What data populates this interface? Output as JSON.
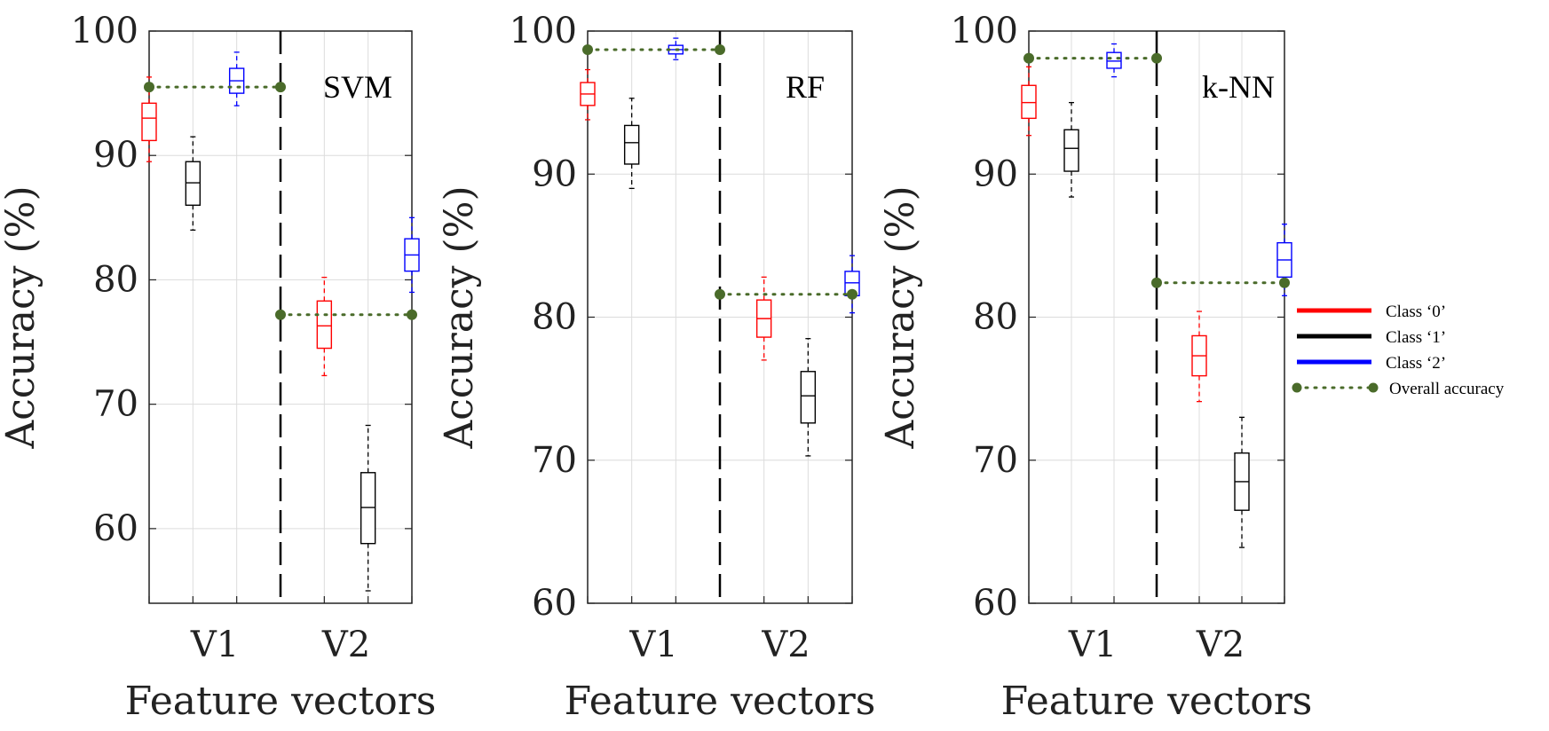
{
  "chart_data": {
    "type": "box",
    "ylabel": "Accuracy (%)",
    "xlabel": "Feature vectors",
    "categories": [
      "V1",
      "V2"
    ],
    "legend": {
      "position": "right",
      "items": [
        {
          "label": "Class ‘0’",
          "color": "#ff0000",
          "style": "solid"
        },
        {
          "label": "Class ‘1’",
          "color": "#000000",
          "style": "solid"
        },
        {
          "label": "Class ‘2’",
          "color": "#0000ff",
          "style": "solid"
        },
        {
          "label": "Overall accuracy",
          "color": "#4a6b2a",
          "style": "dotted-marker"
        }
      ]
    },
    "series_colors": {
      "class0": "#ff0000",
      "class1": "#000000",
      "class2": "#0000ff",
      "overall": "#4a6b2a"
    },
    "panels": [
      {
        "title": "SVM",
        "ylim": [
          54,
          100
        ],
        "yticks": [
          60,
          70,
          80,
          90,
          100
        ],
        "boxes": {
          "V1": [
            {
              "class": "class0",
              "whisker_low": 89.5,
              "q1": 91.2,
              "median": 93.0,
              "q3": 94.2,
              "whisker_high": 96.3
            },
            {
              "class": "class1",
              "whisker_low": 84.0,
              "q1": 86.0,
              "median": 87.8,
              "q3": 89.5,
              "whisker_high": 91.5
            },
            {
              "class": "class2",
              "whisker_low": 94.0,
              "q1": 95.0,
              "median": 96.0,
              "q3": 97.0,
              "whisker_high": 98.3
            }
          ],
          "V2": [
            {
              "class": "class0",
              "whisker_low": 72.3,
              "q1": 74.5,
              "median": 76.3,
              "q3": 78.3,
              "whisker_high": 80.2
            },
            {
              "class": "class1",
              "whisker_low": 55.0,
              "q1": 58.8,
              "median": 61.7,
              "q3": 64.5,
              "whisker_high": 68.3
            },
            {
              "class": "class2",
              "whisker_low": 79.0,
              "q1": 80.7,
              "median": 82.0,
              "q3": 83.3,
              "whisker_high": 85.0
            }
          ]
        },
        "overall": {
          "V1": 95.5,
          "V2": 77.2
        }
      },
      {
        "title": "RF",
        "ylim": [
          60,
          100
        ],
        "yticks": [
          60,
          70,
          80,
          90,
          100
        ],
        "boxes": {
          "V1": [
            {
              "class": "class0",
              "whisker_low": 93.8,
              "q1": 94.8,
              "median": 95.6,
              "q3": 96.4,
              "whisker_high": 97.3
            },
            {
              "class": "class1",
              "whisker_low": 89.0,
              "q1": 90.7,
              "median": 92.2,
              "q3": 93.4,
              "whisker_high": 95.3
            },
            {
              "class": "class2",
              "whisker_low": 98.0,
              "q1": 98.4,
              "median": 98.7,
              "q3": 99.0,
              "whisker_high": 99.5
            }
          ],
          "V2": [
            {
              "class": "class0",
              "whisker_low": 77.0,
              "q1": 78.6,
              "median": 79.9,
              "q3": 81.2,
              "whisker_high": 82.8
            },
            {
              "class": "class1",
              "whisker_low": 70.3,
              "q1": 72.6,
              "median": 74.5,
              "q3": 76.2,
              "whisker_high": 78.5
            },
            {
              "class": "class2",
              "whisker_low": 80.3,
              "q1": 81.5,
              "median": 82.4,
              "q3": 83.2,
              "whisker_high": 84.3
            }
          ]
        },
        "overall": {
          "V1": 98.7,
          "V2": 81.6
        }
      },
      {
        "title": "k-NN",
        "ylim": [
          60,
          100
        ],
        "yticks": [
          60,
          70,
          80,
          90,
          100
        ],
        "boxes": {
          "V1": [
            {
              "class": "class0",
              "whisker_low": 92.7,
              "q1": 93.9,
              "median": 95.0,
              "q3": 96.2,
              "whisker_high": 97.5
            },
            {
              "class": "class1",
              "whisker_low": 88.4,
              "q1": 90.2,
              "median": 91.8,
              "q3": 93.1,
              "whisker_high": 95.0
            },
            {
              "class": "class2",
              "whisker_low": 96.8,
              "q1": 97.4,
              "median": 97.9,
              "q3": 98.5,
              "whisker_high": 99.1
            }
          ],
          "V2": [
            {
              "class": "class0",
              "whisker_low": 74.1,
              "q1": 75.9,
              "median": 77.3,
              "q3": 78.7,
              "whisker_high": 80.4
            },
            {
              "class": "class1",
              "whisker_low": 63.9,
              "q1": 66.5,
              "median": 68.5,
              "q3": 70.5,
              "whisker_high": 73.0
            },
            {
              "class": "class2",
              "whisker_low": 81.5,
              "q1": 82.8,
              "median": 84.0,
              "q3": 85.2,
              "whisker_high": 86.5
            }
          ]
        },
        "overall": {
          "V1": 98.1,
          "V2": 82.4
        }
      }
    ]
  }
}
